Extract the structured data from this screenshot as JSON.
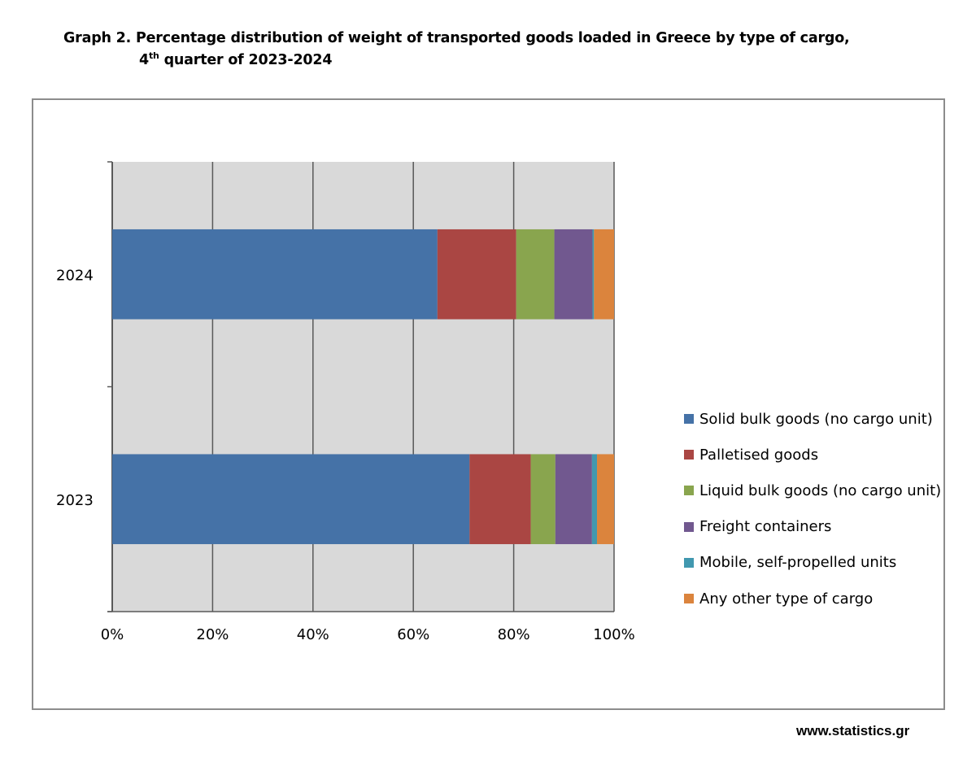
{
  "title": {
    "line1": "Graph 2. Percentage distribution of weight of transported goods loaded in Greece by type of cargo,",
    "line2_prefix": "4",
    "line2_sup": "th",
    "line2_suffix": " quarter of 2023-2024"
  },
  "source": "www.statistics.gr",
  "chart_data": {
    "type": "bar",
    "orientation": "horizontal",
    "stacked": "percent",
    "title": "Percentage distribution of weight of transported goods loaded in Greece by type of cargo, 4th quarter of 2023-2024",
    "categories": [
      "2024",
      "2023"
    ],
    "series": [
      {
        "name": "Solid bulk goods (no cargo unit)",
        "color": "#4572A7",
        "values": [
          64.8,
          71.2
        ]
      },
      {
        "name": "Palletised goods",
        "color": "#AA4643",
        "values": [
          15.7,
          12.2
        ]
      },
      {
        "name": "Liquid bulk goods (no cargo unit)",
        "color": "#89A54E",
        "values": [
          7.6,
          4.9
        ]
      },
      {
        "name": "Freight containers",
        "color": "#71588F",
        "values": [
          7.6,
          7.3
        ]
      },
      {
        "name": "Mobile, self-propelled units",
        "color": "#4198AF",
        "values": [
          0.3,
          1.0
        ]
      },
      {
        "name": "Any other type of cargo",
        "color": "#DB843D",
        "values": [
          4.0,
          3.4
        ]
      }
    ],
    "x_ticks": [
      "0%",
      "20%",
      "40%",
      "60%",
      "80%",
      "100%"
    ],
    "xlim": [
      0,
      100
    ],
    "xlabel": "",
    "ylabel": "",
    "grid": true,
    "legend_position": "right",
    "plot_background": "#D9D9D9",
    "grid_color": "#595959"
  }
}
